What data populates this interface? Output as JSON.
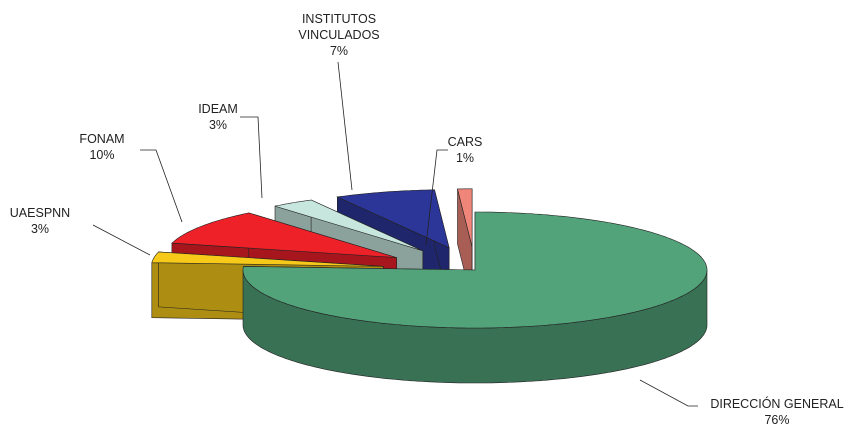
{
  "chart_data": {
    "type": "pie3d",
    "categories": [
      "DIRECCIÓN GENERAL",
      "UAESPNN",
      "FONAM",
      "IDEAM",
      "INSTITUTOS VINCULADOS",
      "CARS"
    ],
    "values": [
      76,
      3,
      10,
      3,
      7,
      1
    ],
    "value_labels": [
      "76%",
      "3%",
      "10%",
      "3%",
      "7%",
      "1%"
    ],
    "colors": [
      "#52a27a",
      "#f7c919",
      "#ee2028",
      "#c6e6de",
      "#2c3699",
      "#f0857a"
    ]
  }
}
